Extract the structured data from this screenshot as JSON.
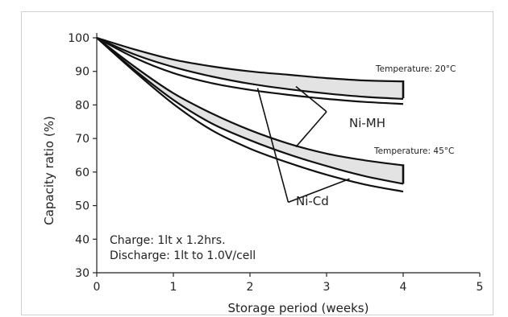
{
  "chart_data": {
    "type": "line",
    "title": "",
    "xlabel": "Storage period (weeks)",
    "ylabel": "Capacity ratio (%)",
    "xlim": [
      0,
      5
    ],
    "ylim": [
      30,
      100
    ],
    "x_ticks": [
      0,
      1,
      2,
      3,
      4,
      5
    ],
    "y_ticks": [
      30,
      40,
      50,
      60,
      70,
      80,
      90,
      100
    ],
    "grid": false,
    "line_color": "#111111",
    "band_fill": "#e3e3e3",
    "temperature_20": "Temperature: 20°C",
    "temperature_45": "Temperature: 45°C",
    "ni_mh_label": "Ni-MH",
    "ni_cd_label": "Ni-Cd",
    "note_line1": "Charge: 1lt x 1.2hrs.",
    "note_line2": "Discharge: 1lt to 1.0V/cell",
    "series": [
      {
        "x": [
          0,
          0.5,
          1,
          1.5,
          2,
          2.5,
          3,
          3.5,
          4
        ],
        "values": [
          100,
          96.5,
          93.5,
          91.5,
          90.0,
          89.0,
          88.0,
          87.3,
          87.0
        ]
      },
      {
        "x": [
          0,
          0.5,
          1,
          1.5,
          2,
          2.5,
          3,
          3.5,
          4
        ],
        "values": [
          100,
          95.0,
          91.3,
          88.5,
          86.3,
          84.7,
          83.4,
          82.4,
          81.8
        ]
      },
      {
        "x": [
          0,
          0.5,
          1,
          1.5,
          2,
          2.5,
          3,
          3.5,
          4
        ],
        "values": [
          100,
          94.0,
          89.5,
          86.5,
          84.5,
          83.0,
          81.8,
          80.9,
          80.3
        ]
      },
      {
        "x": [
          0,
          0.5,
          1,
          1.5,
          2,
          2.5,
          3,
          3.5,
          4
        ],
        "values": [
          100,
          91.3,
          83.5,
          77.5,
          72.5,
          68.5,
          65.5,
          63.5,
          62.0
        ]
      },
      {
        "x": [
          0,
          0.5,
          1,
          1.5,
          2,
          2.5,
          3,
          3.5,
          4
        ],
        "values": [
          100,
          90.3,
          81.5,
          74.5,
          69.5,
          65.3,
          61.8,
          58.8,
          56.5
        ]
      },
      {
        "x": [
          0,
          0.5,
          1,
          1.5,
          2,
          2.5,
          3,
          3.5,
          4
        ],
        "values": [
          100,
          89.8,
          80.3,
          72.5,
          67.0,
          62.8,
          59.2,
          56.3,
          54.2
        ]
      }
    ],
    "bands": [
      {
        "upper_series": 0,
        "lower_series": 1,
        "end_x": 4,
        "end_top": 87.3,
        "end_bottom": 82.0
      },
      {
        "upper_series": 3,
        "lower_series": 4,
        "end_x": 4,
        "end_top": 62.3,
        "end_bottom": 56.5
      }
    ],
    "callouts": [
      {
        "label": "ni_mh",
        "targets": [
          [
            2.6,
            85.5
          ],
          [
            2.6,
            67.5
          ]
        ],
        "label_anchor": [
          3.0,
          78.0
        ]
      },
      {
        "label": "ni_cd",
        "targets": [
          [
            2.1,
            85.0
          ],
          [
            3.3,
            58.0
          ]
        ],
        "label_anchor": [
          2.5,
          51.0
        ]
      }
    ]
  }
}
